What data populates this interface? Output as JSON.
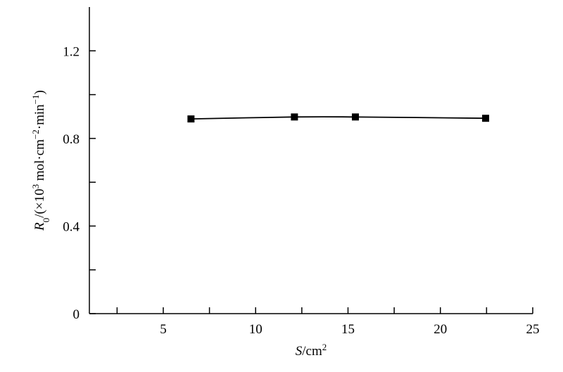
{
  "chart_data": {
    "type": "line",
    "x": [
      6.5,
      12.1,
      15.4,
      22.45
    ],
    "series": [
      {
        "name": "R0",
        "color": "#000000",
        "values": [
          0.889,
          0.898,
          0.898,
          0.892
        ]
      }
    ],
    "xlim": [
      1,
      25
    ],
    "xticks": [
      5,
      10,
      15,
      20,
      25
    ],
    "xminor_ticks": [
      2.5,
      7.5,
      12.5,
      17.5,
      22.5
    ],
    "ylim": [
      0,
      1.4
    ],
    "yticks": [
      0,
      0.4,
      0.8,
      1.2
    ],
    "yminor_ticks": [
      0.2,
      0.6,
      1.0
    ],
    "xlabel": [
      {
        "text": "S",
        "font": "italic"
      },
      {
        "text": "/cm"
      },
      {
        "text": "2",
        "shift": "super"
      }
    ],
    "ylabel": [
      {
        "text": "R",
        "font": "italic"
      },
      {
        "text": "0",
        "shift": "sub"
      },
      {
        "text": "/(×10"
      },
      {
        "text": "3",
        "shift": "super"
      },
      {
        "text": " mol·cm"
      },
      {
        "text": "−2",
        "shift": "super"
      },
      {
        "text": "·min"
      },
      {
        "text": "−1",
        "shift": "super"
      },
      {
        "text": ")"
      }
    ],
    "marker": "square",
    "grid": false
  }
}
